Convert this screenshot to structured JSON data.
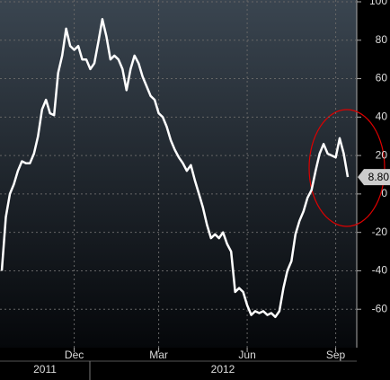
{
  "chart_data": {
    "type": "line",
    "values": [
      -40,
      -12,
      0,
      5,
      12,
      17,
      16,
      16,
      21,
      30,
      44,
      49,
      42,
      41,
      63,
      72,
      86,
      77,
      75,
      77,
      70,
      70,
      65,
      68,
      79,
      91,
      82,
      70,
      72,
      70,
      65,
      54,
      65,
      72,
      68,
      61,
      56,
      51,
      49,
      42,
      40,
      35,
      28,
      23,
      19,
      16,
      12,
      15,
      7,
      0,
      -7,
      -16,
      -23,
      -21,
      -23,
      -20,
      -26,
      -30,
      -51,
      -49,
      -51,
      -58,
      -63,
      -61,
      -62,
      -61,
      -63,
      -62,
      -64,
      -61,
      -49,
      -40,
      -35,
      -21,
      -14,
      -9,
      -2,
      2,
      12,
      21,
      26,
      21,
      20,
      19,
      29,
      21,
      8.8
    ],
    "last_value_label": "8.80",
    "color": "#ffffff",
    "ylim": [
      -80,
      100
    ],
    "yticks": [
      -60,
      -40,
      -20,
      0,
      20,
      40,
      60,
      80,
      100
    ],
    "xlim": [
      0,
      86
    ],
    "xticks": [
      {
        "value": 18,
        "label": "Dec"
      },
      {
        "value": 39,
        "label": "Mar"
      },
      {
        "value": 61,
        "label": "Jun"
      },
      {
        "value": 83,
        "label": "Sep"
      }
    ],
    "years": [
      "2011",
      "2012"
    ],
    "grid": true
  }
}
